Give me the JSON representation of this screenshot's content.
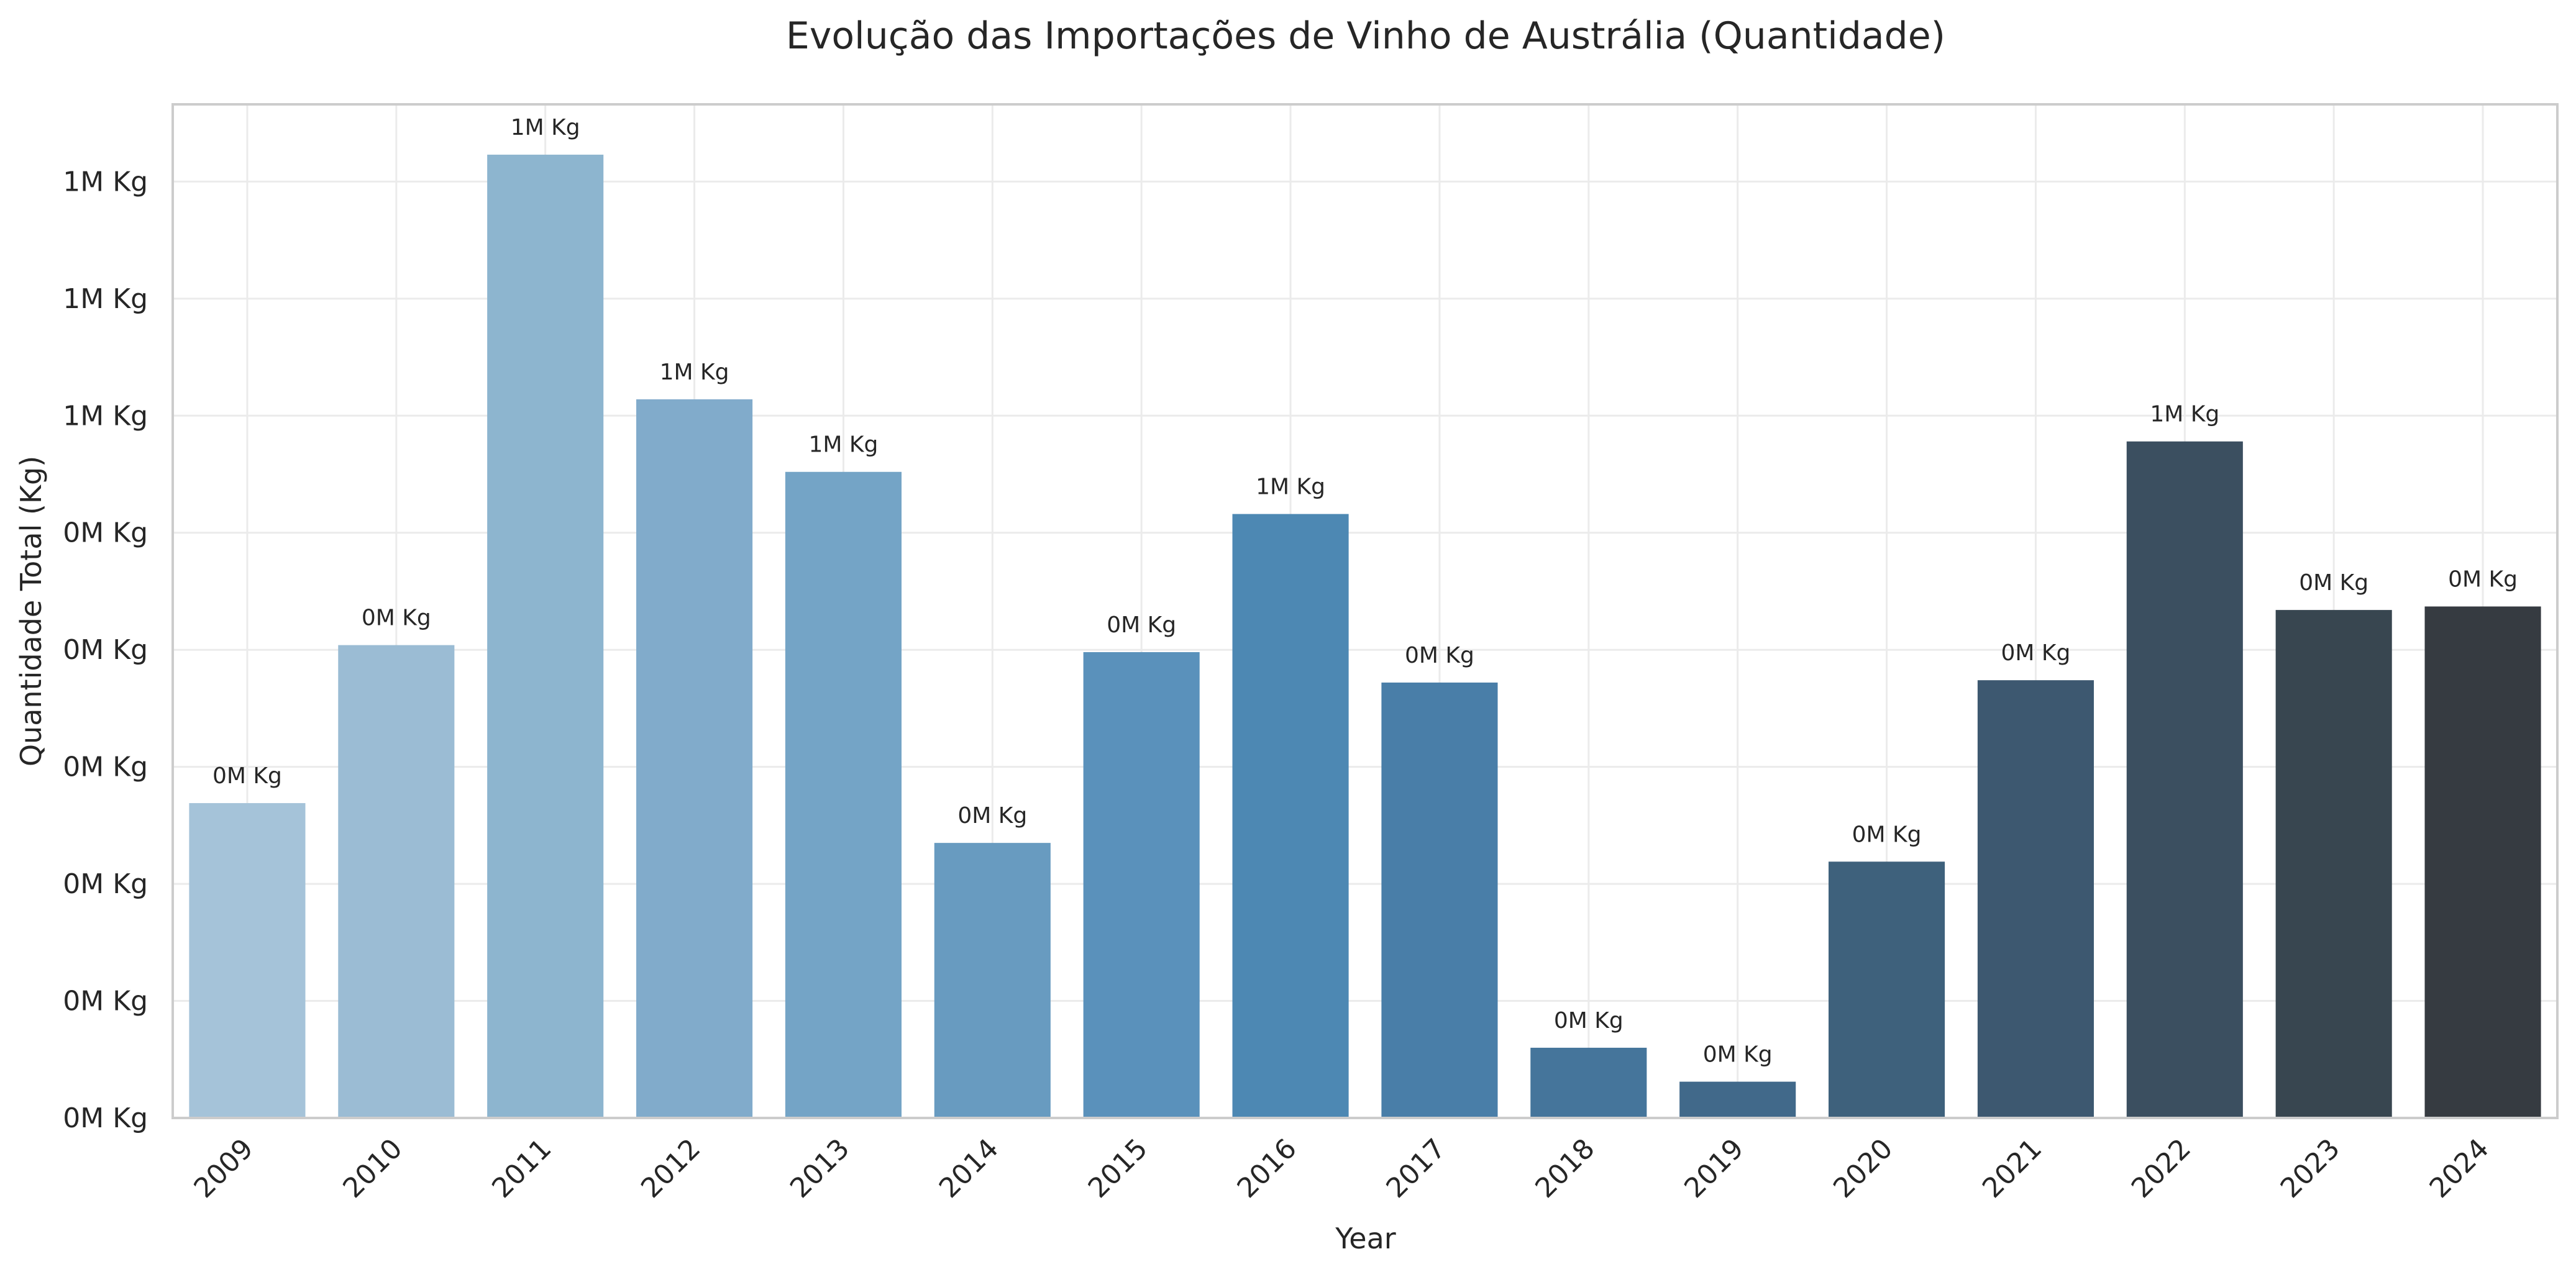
{
  "chart_data": {
    "type": "bar",
    "title": "Evolução das Importações de Vinho de Austrália (Quantidade)",
    "xlabel": "Year",
    "ylabel": "Quantidade Total (Kg)",
    "categories": [
      "2009",
      "2010",
      "2011",
      "2012",
      "2013",
      "2014",
      "2015",
      "2016",
      "2017",
      "2018",
      "2019",
      "2020",
      "2021",
      "2022",
      "2023",
      "2024"
    ],
    "values": [
      269000,
      404000,
      823000,
      614000,
      552000,
      235000,
      398000,
      516000,
      372000,
      60000,
      31000,
      219000,
      374000,
      578000,
      434000,
      437000
    ],
    "data_labels": [
      "0M Kg",
      "0M Kg",
      "1M Kg",
      "1M Kg",
      "1M Kg",
      "0M Kg",
      "0M Kg",
      "1M Kg",
      "0M Kg",
      "0M Kg",
      "0M Kg",
      "0M Kg",
      "0M Kg",
      "1M Kg",
      "0M Kg",
      "0M Kg"
    ],
    "y_ticks": [
      0,
      100000,
      200000,
      300000,
      400000,
      500000,
      600000,
      700000,
      800000
    ],
    "y_tick_labels": [
      "0M Kg",
      "0M Kg",
      "0M Kg",
      "0M Kg",
      "0M Kg",
      "0M Kg",
      "1M Kg",
      "1M Kg",
      "1M Kg"
    ],
    "ylim": [
      0,
      866000
    ],
    "grid": true,
    "colors": [
      "#a5c3d9",
      "#9bbcd4",
      "#8db5cf",
      "#81abcb",
      "#74a4c6",
      "#689bc0",
      "#5a91bb",
      "#4d88b3",
      "#497ea8",
      "#45759b",
      "#41698a",
      "#3e617c",
      "#3d5870",
      "#3b4f60",
      "#384650",
      "#363b41"
    ]
  }
}
